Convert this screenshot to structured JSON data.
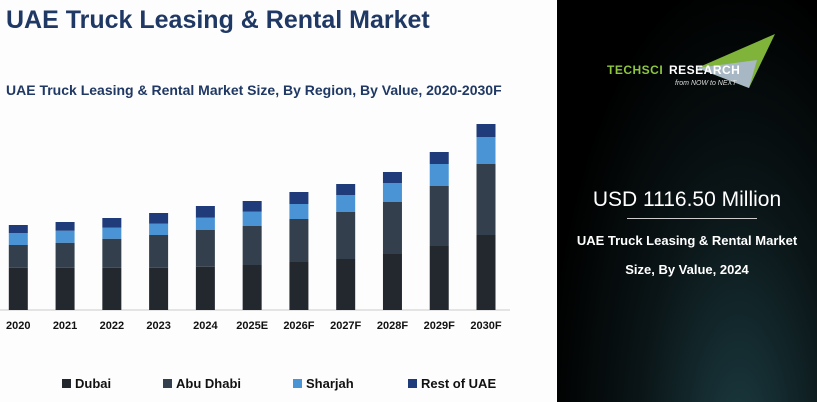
{
  "header": {
    "title": "UAE Truck Leasing & Rental Market"
  },
  "chart_data": {
    "type": "bar",
    "stacked": true,
    "title": "UAE Truck Leasing & Rental Market Size, By Region, By Value, 2020-2030F",
    "xlabel": "",
    "ylabel": "",
    "categories": [
      "2020",
      "2021",
      "2022",
      "2023",
      "2024",
      "2025E",
      "2026F",
      "2027F",
      "2028F",
      "2029F",
      "2030F"
    ],
    "series": [
      {
        "name": "Dubai",
        "color": "#23282f",
        "values": [
          42.3,
          42.3,
          42.3,
          42.3,
          43.3,
          45,
          48,
          51,
          56,
          64,
          75
        ]
      },
      {
        "name": "Abu Dhabi",
        "color": "#333f4c",
        "values": [
          22.7,
          25,
          29,
          32.7,
          36.7,
          39,
          43,
          47,
          52,
          60,
          71
        ]
      },
      {
        "name": "Sharjah",
        "color": "#4a94d6",
        "values": [
          12,
          12,
          11,
          11.3,
          12.3,
          14.3,
          15,
          17,
          19,
          22,
          27
        ]
      },
      {
        "name": "Rest of UAE",
        "color": "#1f3b7a",
        "values": [
          8,
          8.7,
          9.7,
          10.7,
          11.7,
          10.7,
          12,
          11,
          11,
          12,
          13
        ]
      }
    ],
    "ylim": [
      0,
      200
    ],
    "grid": false,
    "legend": "bottom"
  },
  "logo": {
    "brand_1": "TechSci",
    "brand_2": "Research",
    "tagline": "from NOW to NEXT"
  },
  "highlight": {
    "value": "USD 1116.50 Million",
    "line1": "UAE Truck Leasing & Rental Market",
    "line2": "Size, By Value, 2024"
  }
}
